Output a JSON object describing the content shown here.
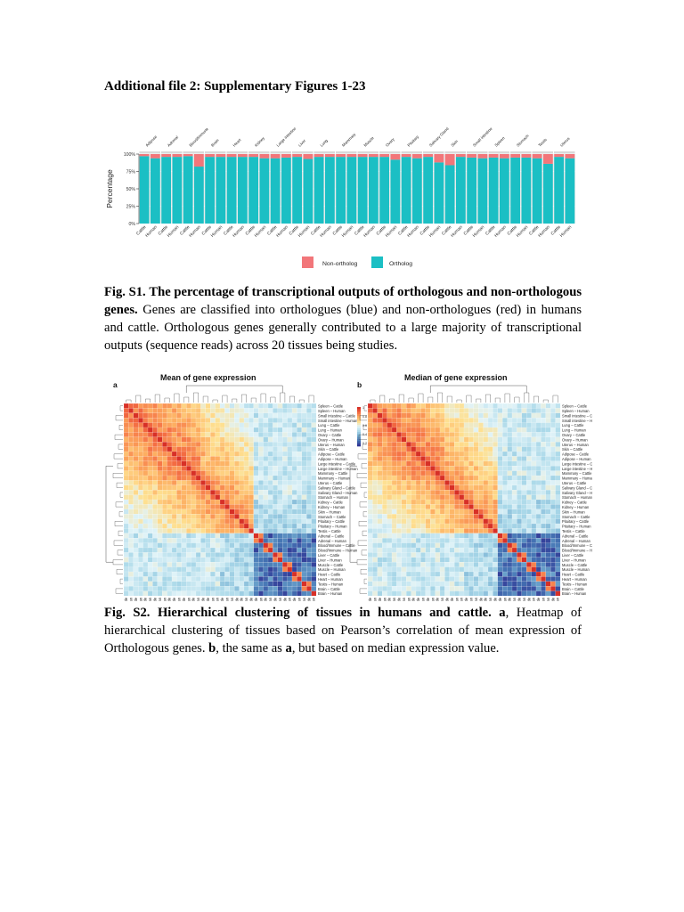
{
  "page": {
    "title": "Additional file 2: Supplementary Figures 1-23"
  },
  "fig1": {
    "caption_label": "Fig. S1.",
    "caption_bold": "The percentage of transcriptional outputs of orthologous and non-orthologous genes.",
    "caption_text": "Genes are classified into orthologues (blue) and non-orthologues (red) in humans and cattle. Orthologous genes generally contributed to a large majority of transcriptional outputs (sequence reads) across 20 tissues being studies.",
    "colors": {
      "ortholog": "#1bbfc4",
      "non_ortholog": "#f2767a"
    }
  },
  "fig2": {
    "panel_a_label": "a",
    "panel_a_title": "Mean of gene expression",
    "panel_b_label": "b",
    "panel_b_title": "Median of gene expression",
    "caption_label": "Fig. S2.",
    "caption_bold": "Hierarchical clustering of tissues in humans and cattle.",
    "caption_a": "a",
    "caption_text1": ", Heatmap of hierarchical clustering of tissues based on Pearson’s correlation of mean expression of Orthologous genes.",
    "caption_b": "b",
    "caption_text2": ", the same as",
    "caption_a2": "a",
    "caption_text3": ", but based on median expression value.",
    "row_labels": [
      "Spleen – Cattle",
      "Spleen – Human",
      "Small intestine – Cattle",
      "Small intestine – Human",
      "Lung – Cattle",
      "Lung – Human",
      "Ovary – Cattle",
      "Ovary – Human",
      "Uterus – Human",
      "Skin – Cattle",
      "Adipose – Cattle",
      "Adipose – Human",
      "Large intestine – Cattle",
      "Large intestine – Human",
      "Mammary – Cattle",
      "Mammary – Human",
      "Uterus – Cattle",
      "Salivary Gland – Cattle",
      "Salivary Gland – Human",
      "Stomach – Human",
      "Kidney – Cattle",
      "Kidney – Human",
      "Skin – Human",
      "Stomach – Cattle",
      "Pituitary – Cattle",
      "Pituitary – Human",
      "Testis – Cattle",
      "Adrenal – Cattle",
      "Adrenal – Human",
      "Blood/Immune – Cattle",
      "Blood/Immune – Human",
      "Liver – Cattle",
      "Liver – Human",
      "Muscle – Cattle",
      "Muscle – Human",
      "Heart – Cattle",
      "Heart – Human",
      "Testis – Human",
      "Brain – Cattle",
      "Brain – Human"
    ],
    "legend_a": [
      "1",
      "0.8",
      "0.6",
      "0.4",
      "0.2"
    ],
    "legend_b": [
      "1",
      "0.8",
      "0.6",
      "0.4",
      "0.2"
    ]
  },
  "chart_data": [
    {
      "type": "bar",
      "title": "",
      "ylabel": "Percentage",
      "ylim": [
        0,
        100
      ],
      "yticks": [
        "0%",
        "25%",
        "50%",
        "75%",
        "100%"
      ],
      "tissues": [
        "Adipose",
        "Adrenal",
        "Blood/Immune",
        "Brain",
        "Heart",
        "Kidney",
        "Large intestine",
        "Liver",
        "Lung",
        "Mammary",
        "Muscle",
        "Ovary",
        "Pituitary",
        "Salivary Gland",
        "Skin",
        "Small intestine",
        "Spleen",
        "Stomach",
        "Testis",
        "Uterus"
      ],
      "categories": [
        "Cattle",
        "Human",
        "Cattle",
        "Human",
        "Cattle",
        "Human",
        "Cattle",
        "Human",
        "Cattle",
        "Human",
        "Cattle",
        "Human",
        "Cattle",
        "Human",
        "Cattle",
        "Human",
        "Cattle",
        "Human",
        "Cattle",
        "Human",
        "Cattle",
        "Human",
        "Cattle",
        "Human",
        "Cattle",
        "Human",
        "Cattle",
        "Human",
        "Cattle",
        "Human",
        "Cattle",
        "Human",
        "Cattle",
        "Human",
        "Cattle",
        "Human",
        "Cattle",
        "Human",
        "Cattle",
        "Human"
      ],
      "series": [
        {
          "name": "Ortholog",
          "values": [
            97,
            94,
            96,
            96,
            97,
            82,
            96,
            96,
            96,
            96,
            96,
            94,
            94,
            95,
            96,
            93,
            96,
            96,
            96,
            96,
            96,
            96,
            96,
            92,
            96,
            94,
            96,
            88,
            84,
            96,
            95,
            94,
            95,
            94,
            95,
            95,
            94,
            86,
            96,
            94
          ]
        },
        {
          "name": "Non-ortholog",
          "values": [
            3,
            6,
            4,
            4,
            3,
            18,
            4,
            4,
            4,
            4,
            4,
            6,
            6,
            5,
            4,
            7,
            4,
            4,
            4,
            4,
            4,
            4,
            4,
            8,
            4,
            6,
            4,
            12,
            16,
            4,
            5,
            6,
            5,
            6,
            5,
            5,
            6,
            14,
            4,
            6
          ]
        }
      ],
      "legend": [
        "Non-ortholog",
        "Ortholog"
      ],
      "legend_position": "bottom",
      "grid": true
    },
    {
      "type": "heatmap",
      "title": "Mean of gene expression",
      "metric": "Pearson correlation",
      "clusters": [
        {
          "label_range": [
            "Spleen – Cattle",
            "Testis – Cattle"
          ],
          "within": 0.7
        },
        {
          "label_range": [
            "Adrenal – Cattle",
            "Brain – Human"
          ],
          "within": 0.55
        }
      ],
      "scale": [
        0.2,
        1
      ]
    },
    {
      "type": "heatmap",
      "title": "Median of gene expression",
      "metric": "Pearson correlation",
      "scale": [
        0.2,
        1
      ]
    }
  ]
}
